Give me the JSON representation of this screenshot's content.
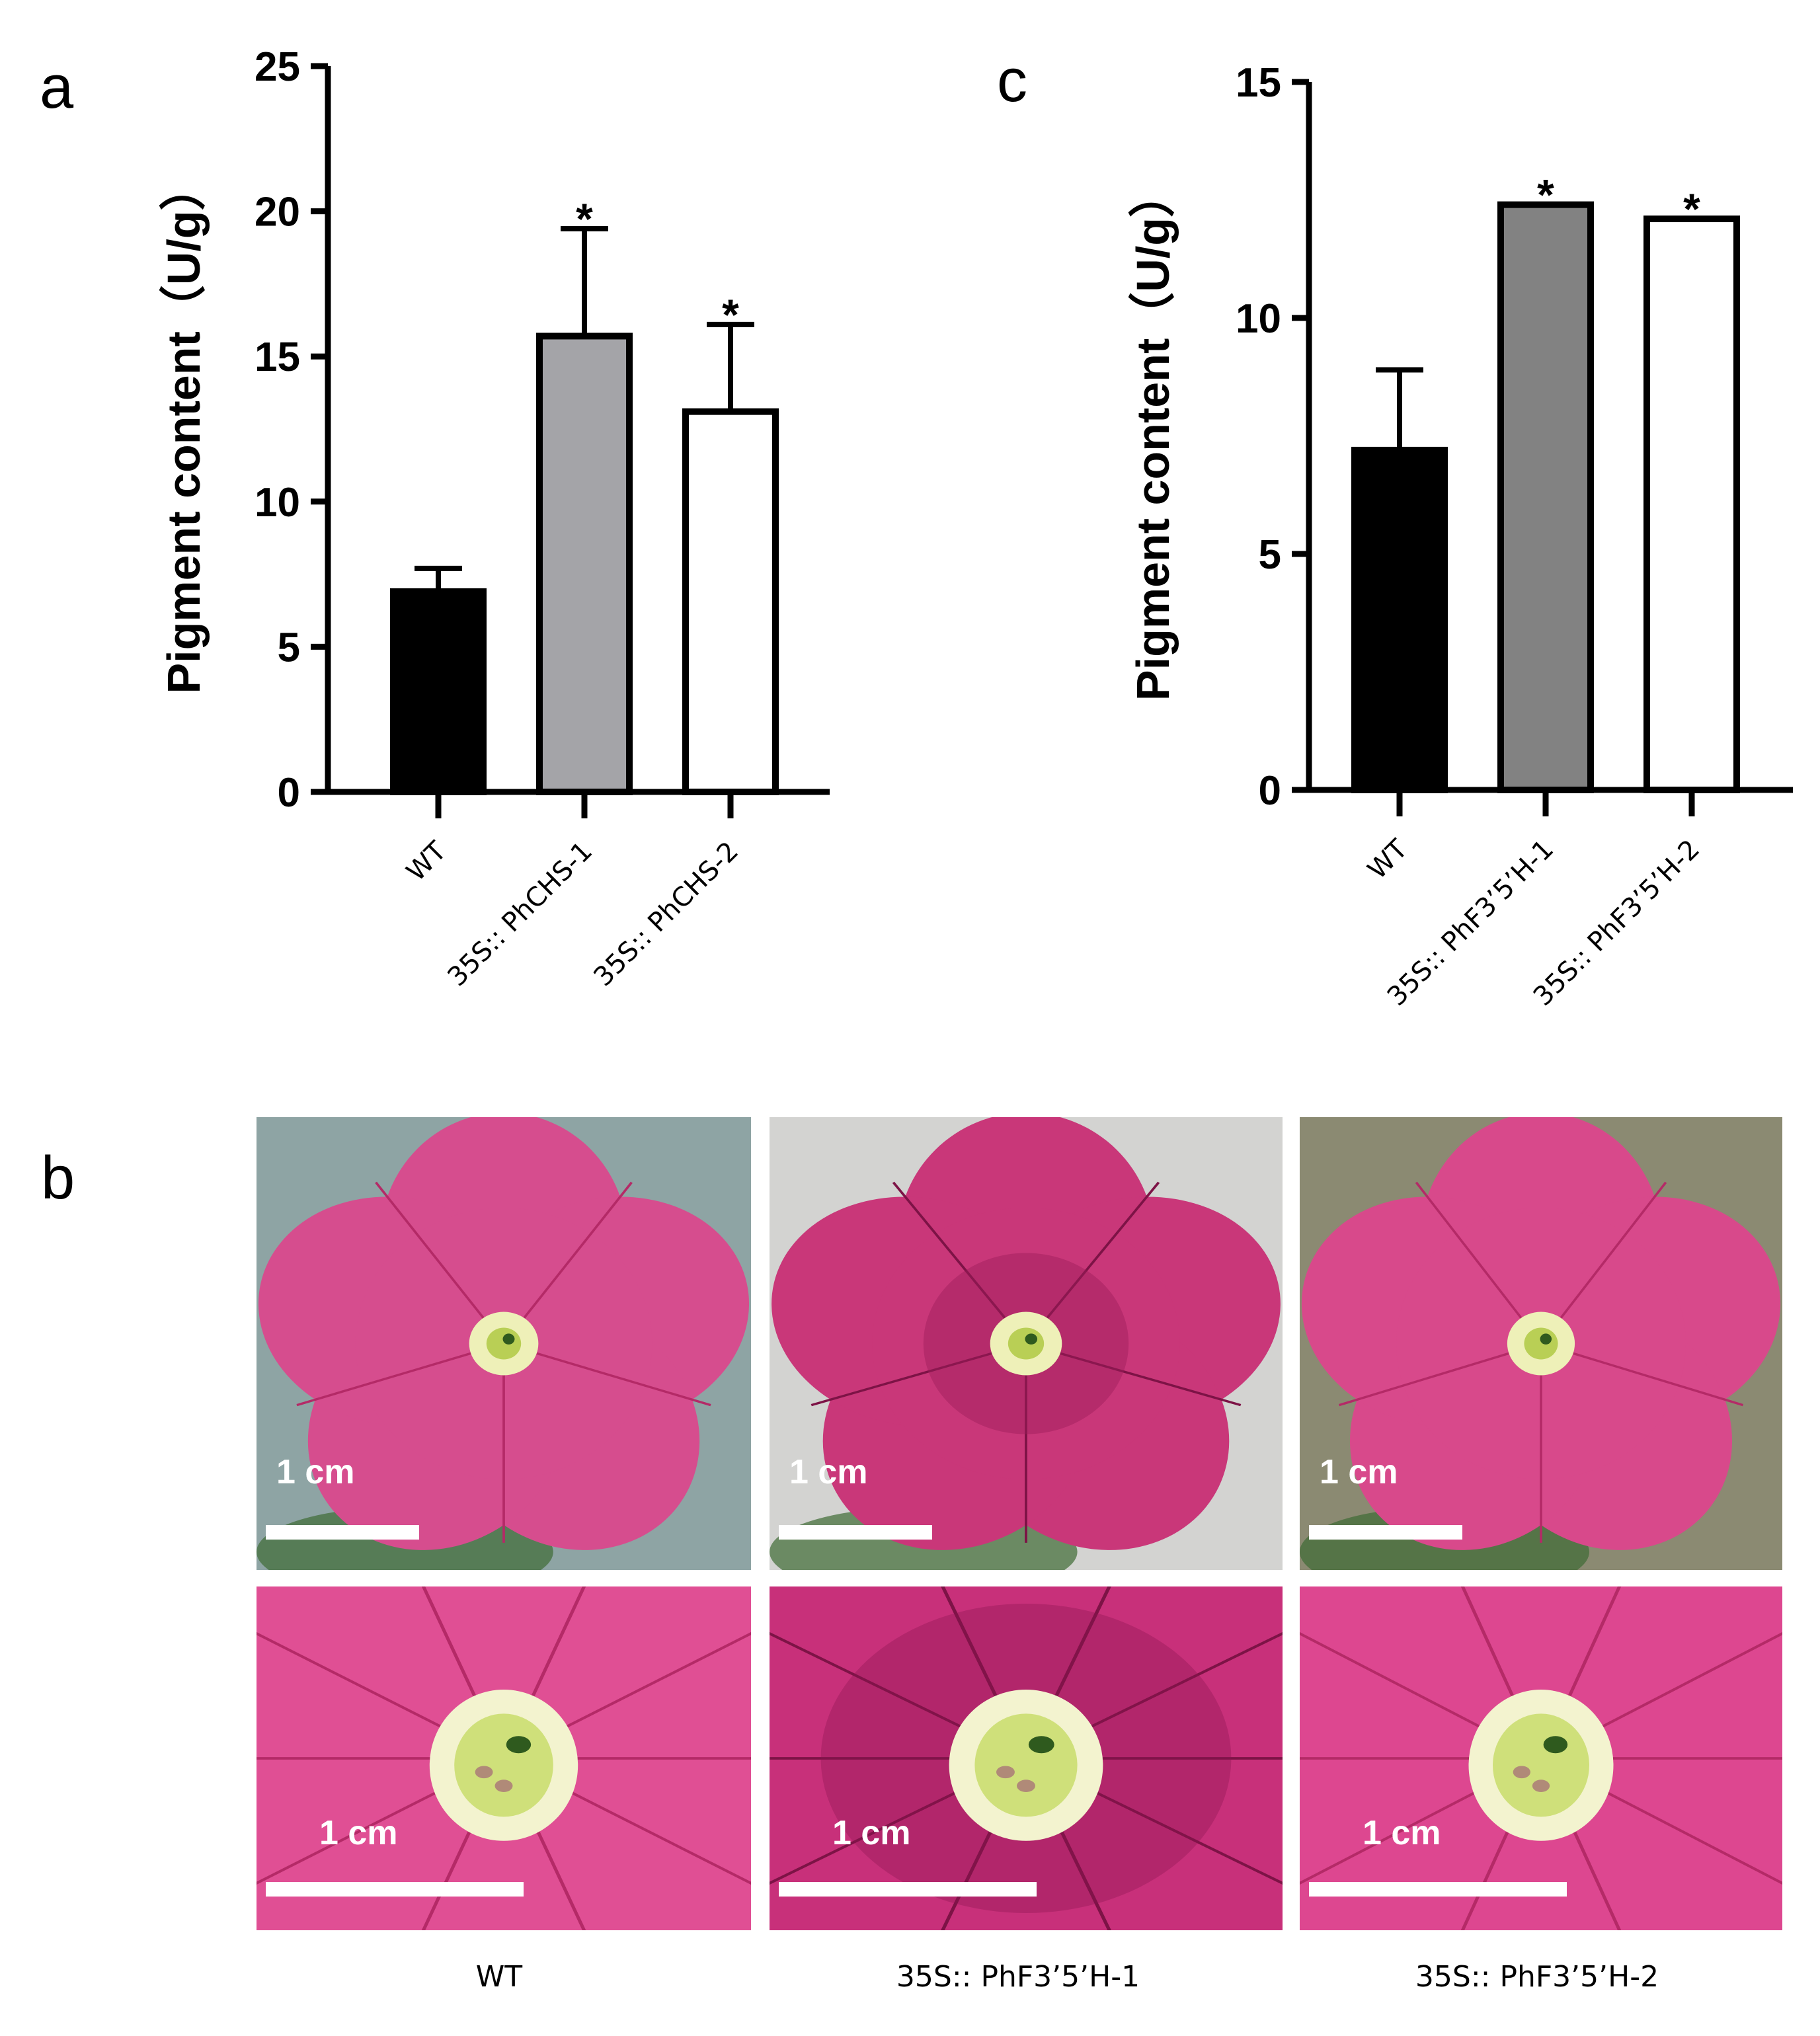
{
  "panels": {
    "a": "a",
    "b": "b",
    "c": "c"
  },
  "chart_data": [
    {
      "panel": "a",
      "type": "bar",
      "categories": [
        "WT",
        "35S:: PhCHS-1",
        "35S:: PhCHS-2"
      ],
      "values": [
        6.9,
        15.7,
        13.1
      ],
      "errors": [
        0.8,
        3.7,
        3.0
      ],
      "significance": [
        "",
        "*",
        "*"
      ],
      "bar_colors": [
        "#000000",
        "#a4a4a8",
        "#ffffff"
      ],
      "ylabel": "Pigment content（U/g）",
      "ylim": [
        0,
        25
      ],
      "yticks": [
        0,
        5,
        10,
        15,
        20,
        25
      ]
    },
    {
      "panel": "c",
      "type": "bar",
      "categories": [
        "WT",
        "35S:: PhF3’5’H-1",
        "35S:: PhF3’5’H-2"
      ],
      "values": [
        7.2,
        12.4,
        12.1
      ],
      "errors": [
        1.7,
        0.05,
        0.05
      ],
      "significance": [
        "",
        "*",
        "*"
      ],
      "bar_colors": [
        "#000000",
        "#828282",
        "#ffffff"
      ],
      "ylabel": "Pigment content（U/g）",
      "ylim": [
        0,
        15
      ],
      "yticks": [
        0,
        5,
        10,
        15
      ]
    }
  ],
  "photos": {
    "scale_label": "1 cm",
    "captions": [
      "WT",
      "35S:: PhF3’5’H-1",
      "35S:: PhF3’5’H-2"
    ]
  }
}
